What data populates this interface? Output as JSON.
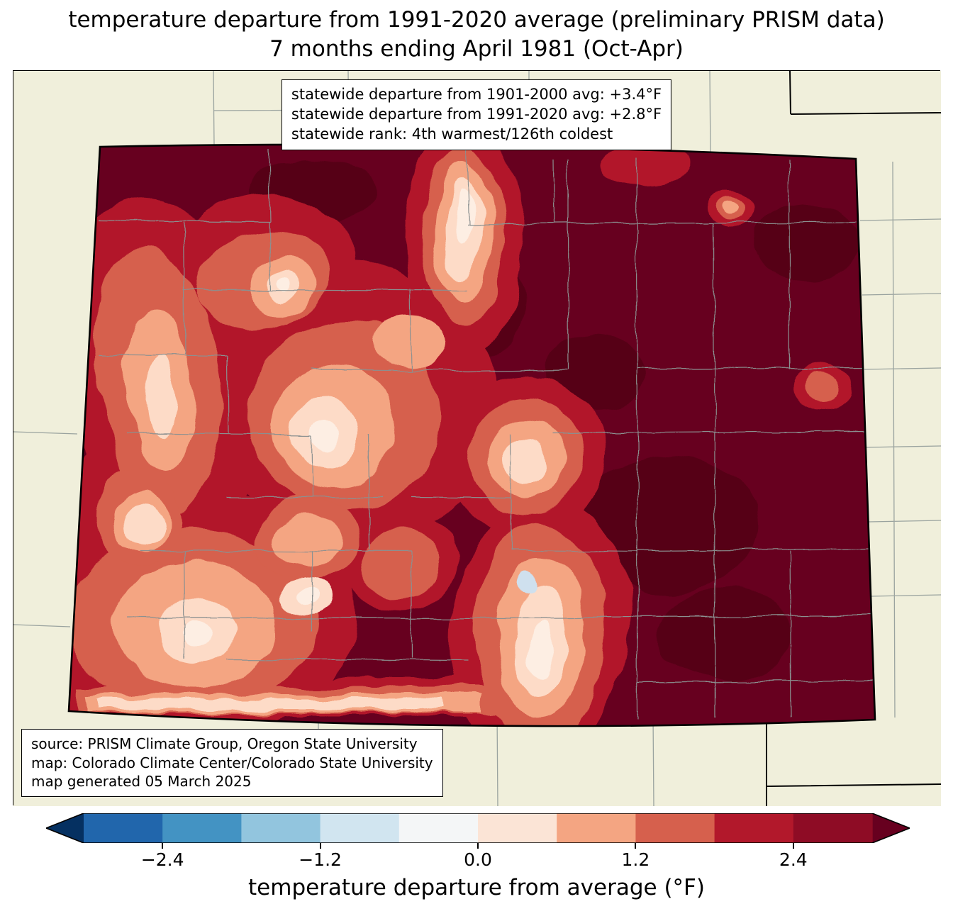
{
  "title": {
    "line1": "temperature departure from 1991-2020 average (preliminary PRISM data)",
    "line2": "7 months ending April 1981 (Oct-Apr)"
  },
  "stats_box": {
    "line1": "statewide departure from 1901-2000 avg: +3.4°F",
    "line2": "statewide departure from 1991-2020 avg: +2.8°F",
    "line3": "statewide rank: 4th warmest/126th coldest"
  },
  "source_box": {
    "line1": "source: PRISM Climate Group, Oregon State University",
    "line2": "map: Colorado Climate Center/Colorado State University",
    "line3": "map generated 05 March 2025"
  },
  "colorbar": {
    "label": "temperature departure from average (°F)",
    "vmin": -3.0,
    "vmax": 3.0,
    "ticks": [
      {
        "value": -2.4,
        "label": "−2.4"
      },
      {
        "value": -1.2,
        "label": "−1.2"
      },
      {
        "value": 0.0,
        "label": "0.0"
      },
      {
        "value": 1.2,
        "label": "1.2"
      },
      {
        "value": 2.4,
        "label": "2.4"
      }
    ],
    "under_color": "#053061",
    "over_color": "#67001f",
    "segment_colors": [
      "#2166ac",
      "#4393c3",
      "#92c5de",
      "#d1e5f0",
      "#f4f6f7",
      "#fbe4d6",
      "#f4a582",
      "#d6604d",
      "#b2182b",
      "#8e0c25"
    ]
  },
  "map": {
    "region": "Colorado (with surrounding state county outlines)",
    "background_color": "#f0efdb",
    "state_border_color": "#000000",
    "county_line_color": "#8b9090",
    "fill_palette": {
      "darkest_over": "#570018",
      "base_over": "#67001f",
      "strong_warm": "#b2182b",
      "warm": "#d6604d",
      "mild_warm": "#f4a582",
      "slight_warm": "#fddbc7",
      "near_zero": "#fdeee3",
      "slight_cool": "#cfe0ee"
    }
  }
}
